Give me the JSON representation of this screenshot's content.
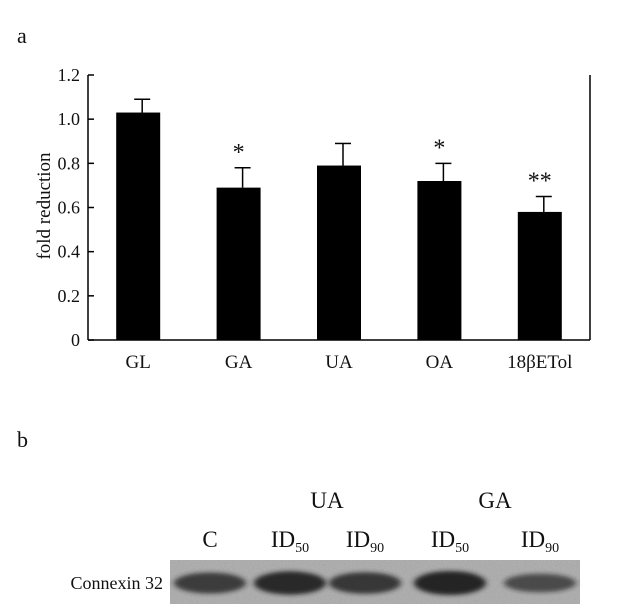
{
  "panel_a": {
    "label": "a"
  },
  "panel_b": {
    "label": "b"
  },
  "chart_data": {
    "type": "bar",
    "title": "",
    "xlabel": "",
    "ylabel": "fold reduction",
    "ylim": [
      0,
      1.2
    ],
    "yticks": [
      "0",
      "0.2",
      "0.4",
      "0.6",
      "0.8",
      "1.0",
      "1.2"
    ],
    "categories": [
      "GL",
      "GA",
      "UA",
      "OA",
      "18βETol"
    ],
    "values": [
      1.03,
      0.69,
      0.79,
      0.72,
      0.58
    ],
    "errors": [
      0.06,
      0.09,
      0.1,
      0.08,
      0.07
    ],
    "significance": [
      "",
      "*",
      "",
      "*",
      "**"
    ],
    "bar_color": "#000000"
  },
  "blot": {
    "groups": [
      "UA",
      "GA"
    ],
    "lanes": [
      {
        "main": "C",
        "sub": ""
      },
      {
        "main": "ID",
        "sub": "50"
      },
      {
        "main": "ID",
        "sub": "90"
      },
      {
        "main": "ID",
        "sub": "50"
      },
      {
        "main": "ID",
        "sub": "90"
      }
    ],
    "row_label": "Connexin 32",
    "band_intensities": [
      0.75,
      0.95,
      0.8,
      1.0,
      0.55
    ]
  }
}
